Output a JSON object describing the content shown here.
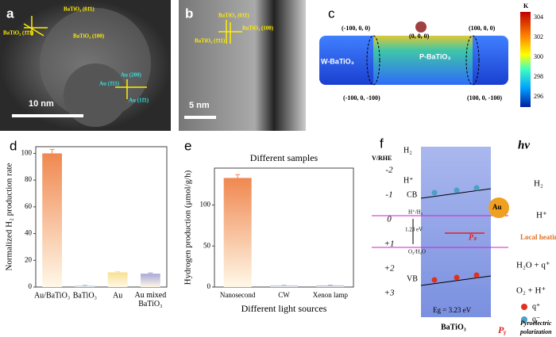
{
  "chart_data": [
    {
      "type": "bar",
      "panel_label": "d",
      "ylabel": "Normalized H₂ production rate",
      "categories": [
        "Au/BaTiO₃",
        "BaTiO₃",
        "Au",
        "Au mixed BaTiO₃"
      ],
      "values": [
        100,
        1,
        11,
        10
      ],
      "errors": [
        3,
        0.3,
        0.5,
        0.6
      ],
      "colors": [
        "#f08850",
        "#a8c0e8",
        "#f8e090",
        "#a8a8d8"
      ],
      "ylim": [
        0,
        105
      ],
      "yticks": [
        0,
        20,
        40,
        60,
        80,
        100
      ]
    },
    {
      "type": "bar",
      "panel_label": "e",
      "title": "Different samples",
      "xlabel": "Different light sources",
      "ylabel": "Hydrogen production (μmol/g/h)",
      "categories": [
        "Nanosecond",
        "CW",
        "Xenon lamp"
      ],
      "values": [
        133,
        2,
        2
      ],
      "errors": [
        4,
        0.3,
        0.3
      ],
      "colors": [
        "#f08850",
        "#a8c0e8",
        "#a8a8d8"
      ],
      "ylim": [
        0,
        145
      ],
      "yticks": [
        0,
        50,
        100
      ]
    }
  ],
  "panels": {
    "a": {
      "label": "a",
      "annotations": [
        "BaTiO₃ (01̄1)",
        "BaTiO₃ (100)",
        "BaTiO₃ (1̄1̄1)",
        "Au (200)",
        "Au (1̄11)",
        "Au (11̄1)"
      ],
      "scale_bar": "10 nm"
    },
    "b": {
      "label": "b",
      "annotations": [
        "BaTiO₃ (01̄1)",
        "BaTiO₃ (100)",
        "BaTiO₃ (1̄11)"
      ],
      "scale_bar": "5 nm"
    },
    "c": {
      "label": "c",
      "annotations": [
        "(-100, 0, 0)",
        "(0, 0, 0)",
        "(100, 0, 0)",
        "W-BaTiO₃",
        "P-BaTiO₃",
        "(-100, 0, -100)",
        "(100, 0, -100)"
      ],
      "colorbar_unit": "K",
      "colorbar_ticks": [
        304,
        302,
        300,
        298,
        296
      ]
    },
    "f": {
      "label": "f",
      "axis_label": "V/RHE",
      "axis_ticks": [
        "-2",
        "-1",
        "0",
        "+1",
        "+2",
        "+3"
      ],
      "annotations": [
        "H₂",
        "H⁺",
        "CB",
        "H⁺/H₂",
        "1.23 eV",
        "O₂/H₂O",
        "VB",
        "Eg = 3.23 eV",
        "BaTiO₃",
        "Au",
        "hv",
        "H₂",
        "H⁺",
        "Local heating",
        "Pₛ",
        "H₂O + q⁺",
        "O₂ + H⁺",
        "q⁺",
        "q⁻",
        "Pᵧ",
        "Pyroelectric",
        "polarization"
      ]
    }
  }
}
